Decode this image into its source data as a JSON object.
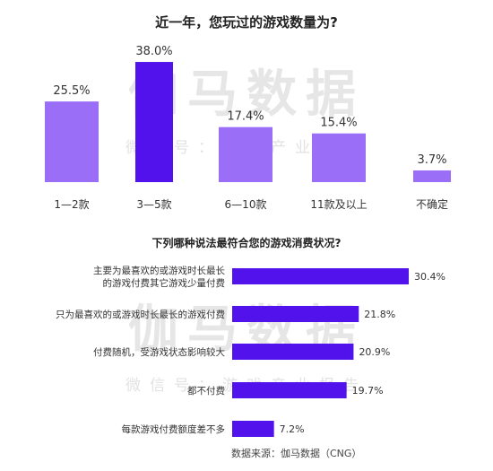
{
  "watermark": {
    "big": "伽马数据",
    "small": "微信号：游戏产业报告"
  },
  "source": "数据来源：伽马数据（CNG）",
  "colors": {
    "bar": "#9a6ef7",
    "highlight": "#5212ec"
  },
  "chart_data": [
    {
      "type": "bar",
      "title": "近一年，您玩过的游戏数量为?",
      "categories": [
        "1—2款",
        "3—5款",
        "6—10款",
        "11款及以上",
        "不确定"
      ],
      "values": [
        25.5,
        38.0,
        17.4,
        15.4,
        3.7
      ],
      "value_labels": [
        "25.5%",
        "38.0%",
        "17.4%",
        "15.4%",
        "3.7%"
      ],
      "highlight_index": 1,
      "ylim": [
        0,
        40
      ],
      "orientation": "vertical",
      "grid": false
    },
    {
      "type": "bar",
      "title": "下列哪种说法最符合您的游戏消费状况?",
      "categories": [
        [
          "主要为最喜欢的或游戏时长最长",
          "的游戏付费其它游戏少量付费"
        ],
        [
          "只为最喜欢的或游戏时长最长的游戏付费"
        ],
        [
          "付费随机，受游戏状态影响较大"
        ],
        [
          "都不付费"
        ],
        [
          "每款游戏付费额度差不多"
        ]
      ],
      "values": [
        30.4,
        21.8,
        20.9,
        19.7,
        7.2
      ],
      "value_labels": [
        "30.4%",
        "21.8%",
        "20.9%",
        "19.7%",
        "7.2%"
      ],
      "orientation": "horizontal",
      "xlim": [
        0,
        30.4
      ],
      "grid": false
    }
  ]
}
